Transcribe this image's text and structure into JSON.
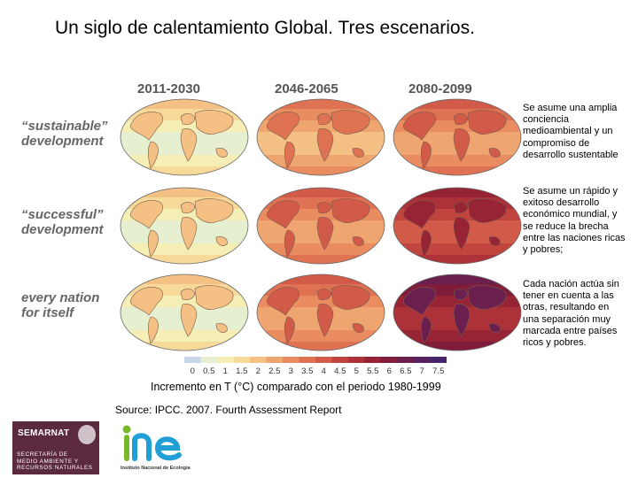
{
  "title": "Un siglo de calentamiento Global. Tres escenarios.",
  "figure": {
    "periods": [
      "2011-2030",
      "2046-2065",
      "2080-2099"
    ],
    "scenarios": [
      {
        "label_line1": "“sustainable”",
        "label_line2": "development",
        "description": "Se asume una amplia conciencia medioambiental y un compromiso de desarrollo sustentable"
      },
      {
        "label_line1": "“successful”",
        "label_line2": "development",
        "description": "Se asume un rápido y exitoso desarrollo económico mundial, y se reduce la brecha entre las naciones ricas y pobres;"
      },
      {
        "label_line1": "every nation",
        "label_line2": "for itself",
        "description": "Cada nación actúa sin tener en cuenta a las otras, resultando en una separación muy marcada entre países ricos y pobres."
      }
    ],
    "colorbar": {
      "ticks": [
        "0",
        "0.5",
        "1",
        "1.5",
        "2",
        "2.5",
        "3",
        "3.5",
        "4",
        "4.5",
        "5",
        "5.5",
        "6",
        "6.5",
        "7",
        "7.5"
      ],
      "colors": [
        "#c8d8ea",
        "#e6efcf",
        "#f5efb6",
        "#f7d99a",
        "#f4c084",
        "#efa570",
        "#e98c5f",
        "#df7253",
        "#d15a48",
        "#c1443f",
        "#ad3138",
        "#972434",
        "#7f1c3a",
        "#6a1f4f",
        "#57225f",
        "#44246a"
      ]
    },
    "maps": [
      {
        "period": "2011-2030",
        "scenario": "sustainable development",
        "warming_level_index": 2
      },
      {
        "period": "2046-2065",
        "scenario": "sustainable development",
        "warming_level_index": 5
      },
      {
        "period": "2080-2099",
        "scenario": "sustainable development",
        "warming_level_index": 6
      },
      {
        "period": "2011-2030",
        "scenario": "successful development",
        "warming_level_index": 2
      },
      {
        "period": "2046-2065",
        "scenario": "successful development",
        "warming_level_index": 6
      },
      {
        "period": "2080-2099",
        "scenario": "successful development",
        "warming_level_index": 9
      },
      {
        "period": "2011-2030",
        "scenario": "every nation for itself",
        "warming_level_index": 2
      },
      {
        "period": "2046-2065",
        "scenario": "every nation for itself",
        "warming_level_index": 6
      },
      {
        "period": "2080-2099",
        "scenario": "every nation for itself",
        "warming_level_index": 11
      }
    ],
    "caption": "Incremento en T (°C) comparado con el periodo 1980-1999"
  },
  "source": "Source: IPCC. 2007. Fourth Assessment Report",
  "logos": {
    "semarnat_name": "SEMARNAT",
    "semarnat_text_1": "SECRETARÍA DE",
    "semarnat_text_2": "MEDIO AMBIENTE Y",
    "semarnat_text_3": "RECURSOS NATURALES",
    "ine_name": "ine",
    "ine_subtitle": "Instituto Nacional de Ecología"
  }
}
